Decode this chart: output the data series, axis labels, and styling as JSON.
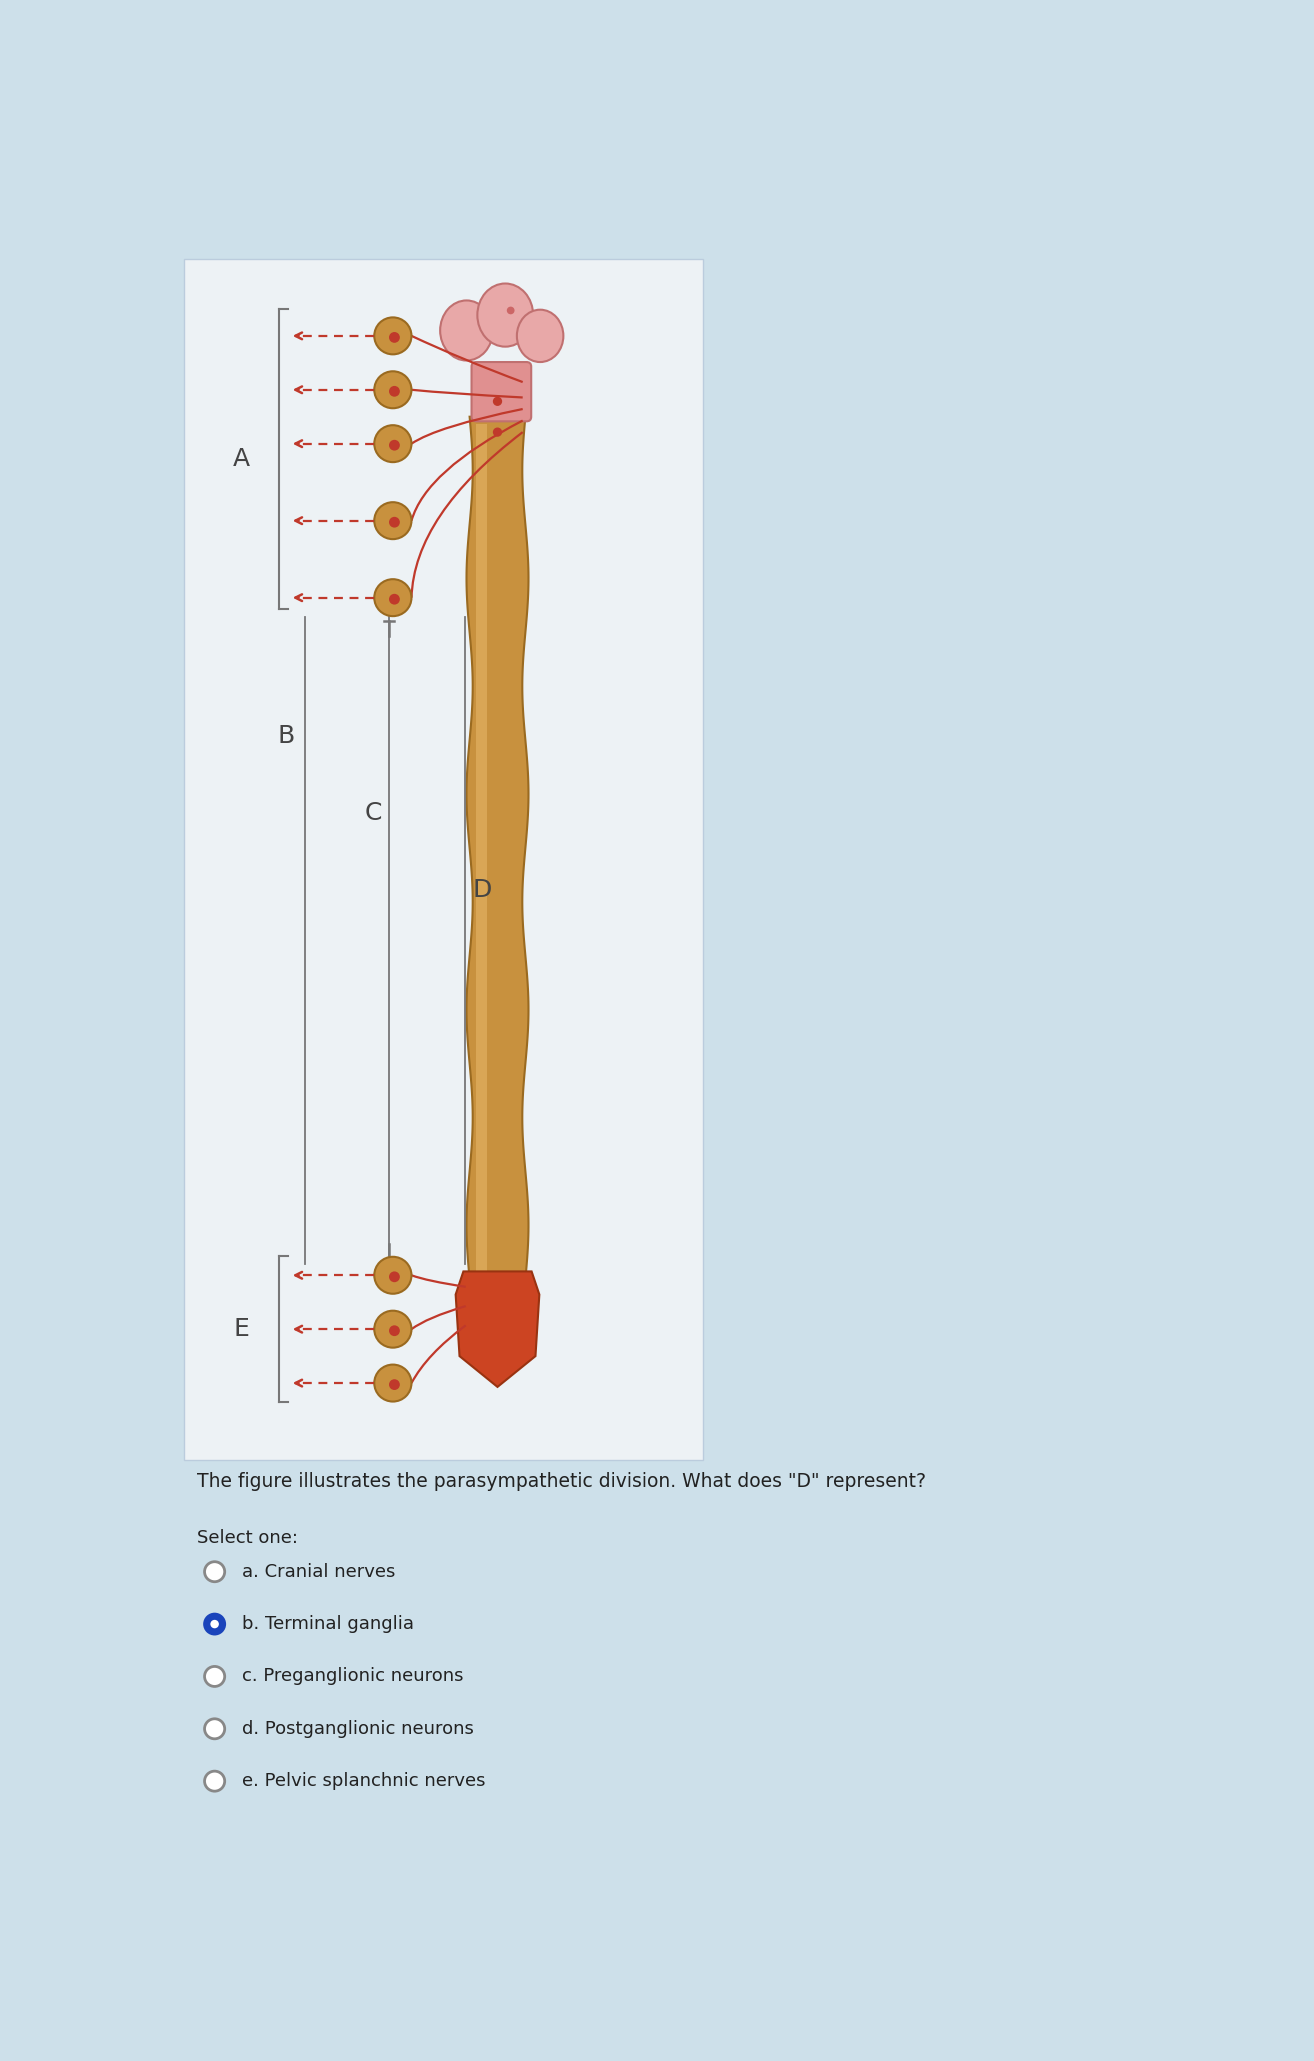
{
  "bg_color": "#cde0ea",
  "panel_bg": "#e8eef2",
  "title_text": "The figure illustrates the parasympathetic division. What does \"D\" represent?",
  "select_text": "Select one:",
  "options": [
    {
      "label": "a. Cranial nerves",
      "selected": false
    },
    {
      "label": "b. Terminal ganglia",
      "selected": true
    },
    {
      "label": "c. Preganglionic neurons",
      "selected": false
    },
    {
      "label": "d. Postganglionic neurons",
      "selected": false
    },
    {
      "label": "e. Pelvic splanchnic nerves",
      "selected": false
    }
  ],
  "spine_color": "#c8913e",
  "spine_highlight": "#e8b86a",
  "spine_shadow": "#9a6a20",
  "ganglia_fill": "#c8913e",
  "ganglia_edge": "#9a6a20",
  "ganglion_dot": "#c0392b",
  "arrow_color": "#c0392b",
  "nerve_color": "#c0392b",
  "line_color": "#777777",
  "label_color": "#444444",
  "brain_fill": "#e8a8a8",
  "brain_edge": "#c07070",
  "brainstem_fill": "#e09090",
  "sacral_fill": "#cc4422",
  "sacral_edge": "#993311",
  "white_panel": "#edf2f5"
}
